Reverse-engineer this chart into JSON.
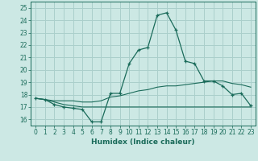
{
  "xlabel": "Humidex (Indice chaleur)",
  "bg_color": "#cce8e4",
  "grid_color": "#aacfcb",
  "line_color": "#1a6b5a",
  "xlim": [
    -0.5,
    23.5
  ],
  "ylim": [
    15.5,
    25.5
  ],
  "xticks": [
    0,
    1,
    2,
    3,
    4,
    5,
    6,
    7,
    8,
    9,
    10,
    11,
    12,
    13,
    14,
    15,
    16,
    17,
    18,
    19,
    20,
    21,
    22,
    23
  ],
  "yticks": [
    16,
    17,
    18,
    19,
    20,
    21,
    22,
    23,
    24,
    25
  ],
  "main_x": [
    0,
    1,
    2,
    3,
    4,
    5,
    6,
    7,
    8,
    9,
    10,
    11,
    12,
    13,
    14,
    15,
    16,
    17,
    18,
    19,
    20,
    21,
    22,
    23
  ],
  "main_y": [
    17.7,
    17.6,
    17.2,
    17.0,
    16.9,
    16.8,
    15.8,
    15.8,
    18.1,
    18.1,
    20.5,
    21.6,
    21.8,
    24.4,
    24.6,
    23.2,
    20.7,
    20.5,
    19.1,
    19.1,
    18.7,
    18.0,
    18.1,
    17.1
  ],
  "line2_x": [
    0,
    1,
    2,
    3,
    4,
    5,
    6,
    7,
    8,
    9,
    10,
    11,
    12,
    13,
    14,
    15,
    16,
    17,
    18,
    19,
    20,
    21,
    22,
    23
  ],
  "line2_y": [
    17.7,
    17.6,
    17.4,
    17.2,
    17.1,
    17.0,
    17.0,
    17.0,
    17.0,
    17.0,
    17.0,
    17.0,
    17.0,
    17.0,
    17.0,
    17.0,
    17.0,
    17.0,
    17.0,
    17.0,
    17.0,
    17.0,
    17.0,
    17.0
  ],
  "line3_x": [
    0,
    1,
    2,
    3,
    4,
    5,
    6,
    7,
    8,
    9,
    10,
    11,
    12,
    13,
    14,
    15,
    16,
    17,
    18,
    19,
    20,
    21,
    22,
    23
  ],
  "line3_y": [
    17.7,
    17.6,
    17.5,
    17.5,
    17.5,
    17.4,
    17.4,
    17.5,
    17.8,
    17.9,
    18.1,
    18.3,
    18.4,
    18.6,
    18.7,
    18.7,
    18.8,
    18.9,
    19.0,
    19.1,
    19.1,
    18.9,
    18.8,
    18.6
  ]
}
